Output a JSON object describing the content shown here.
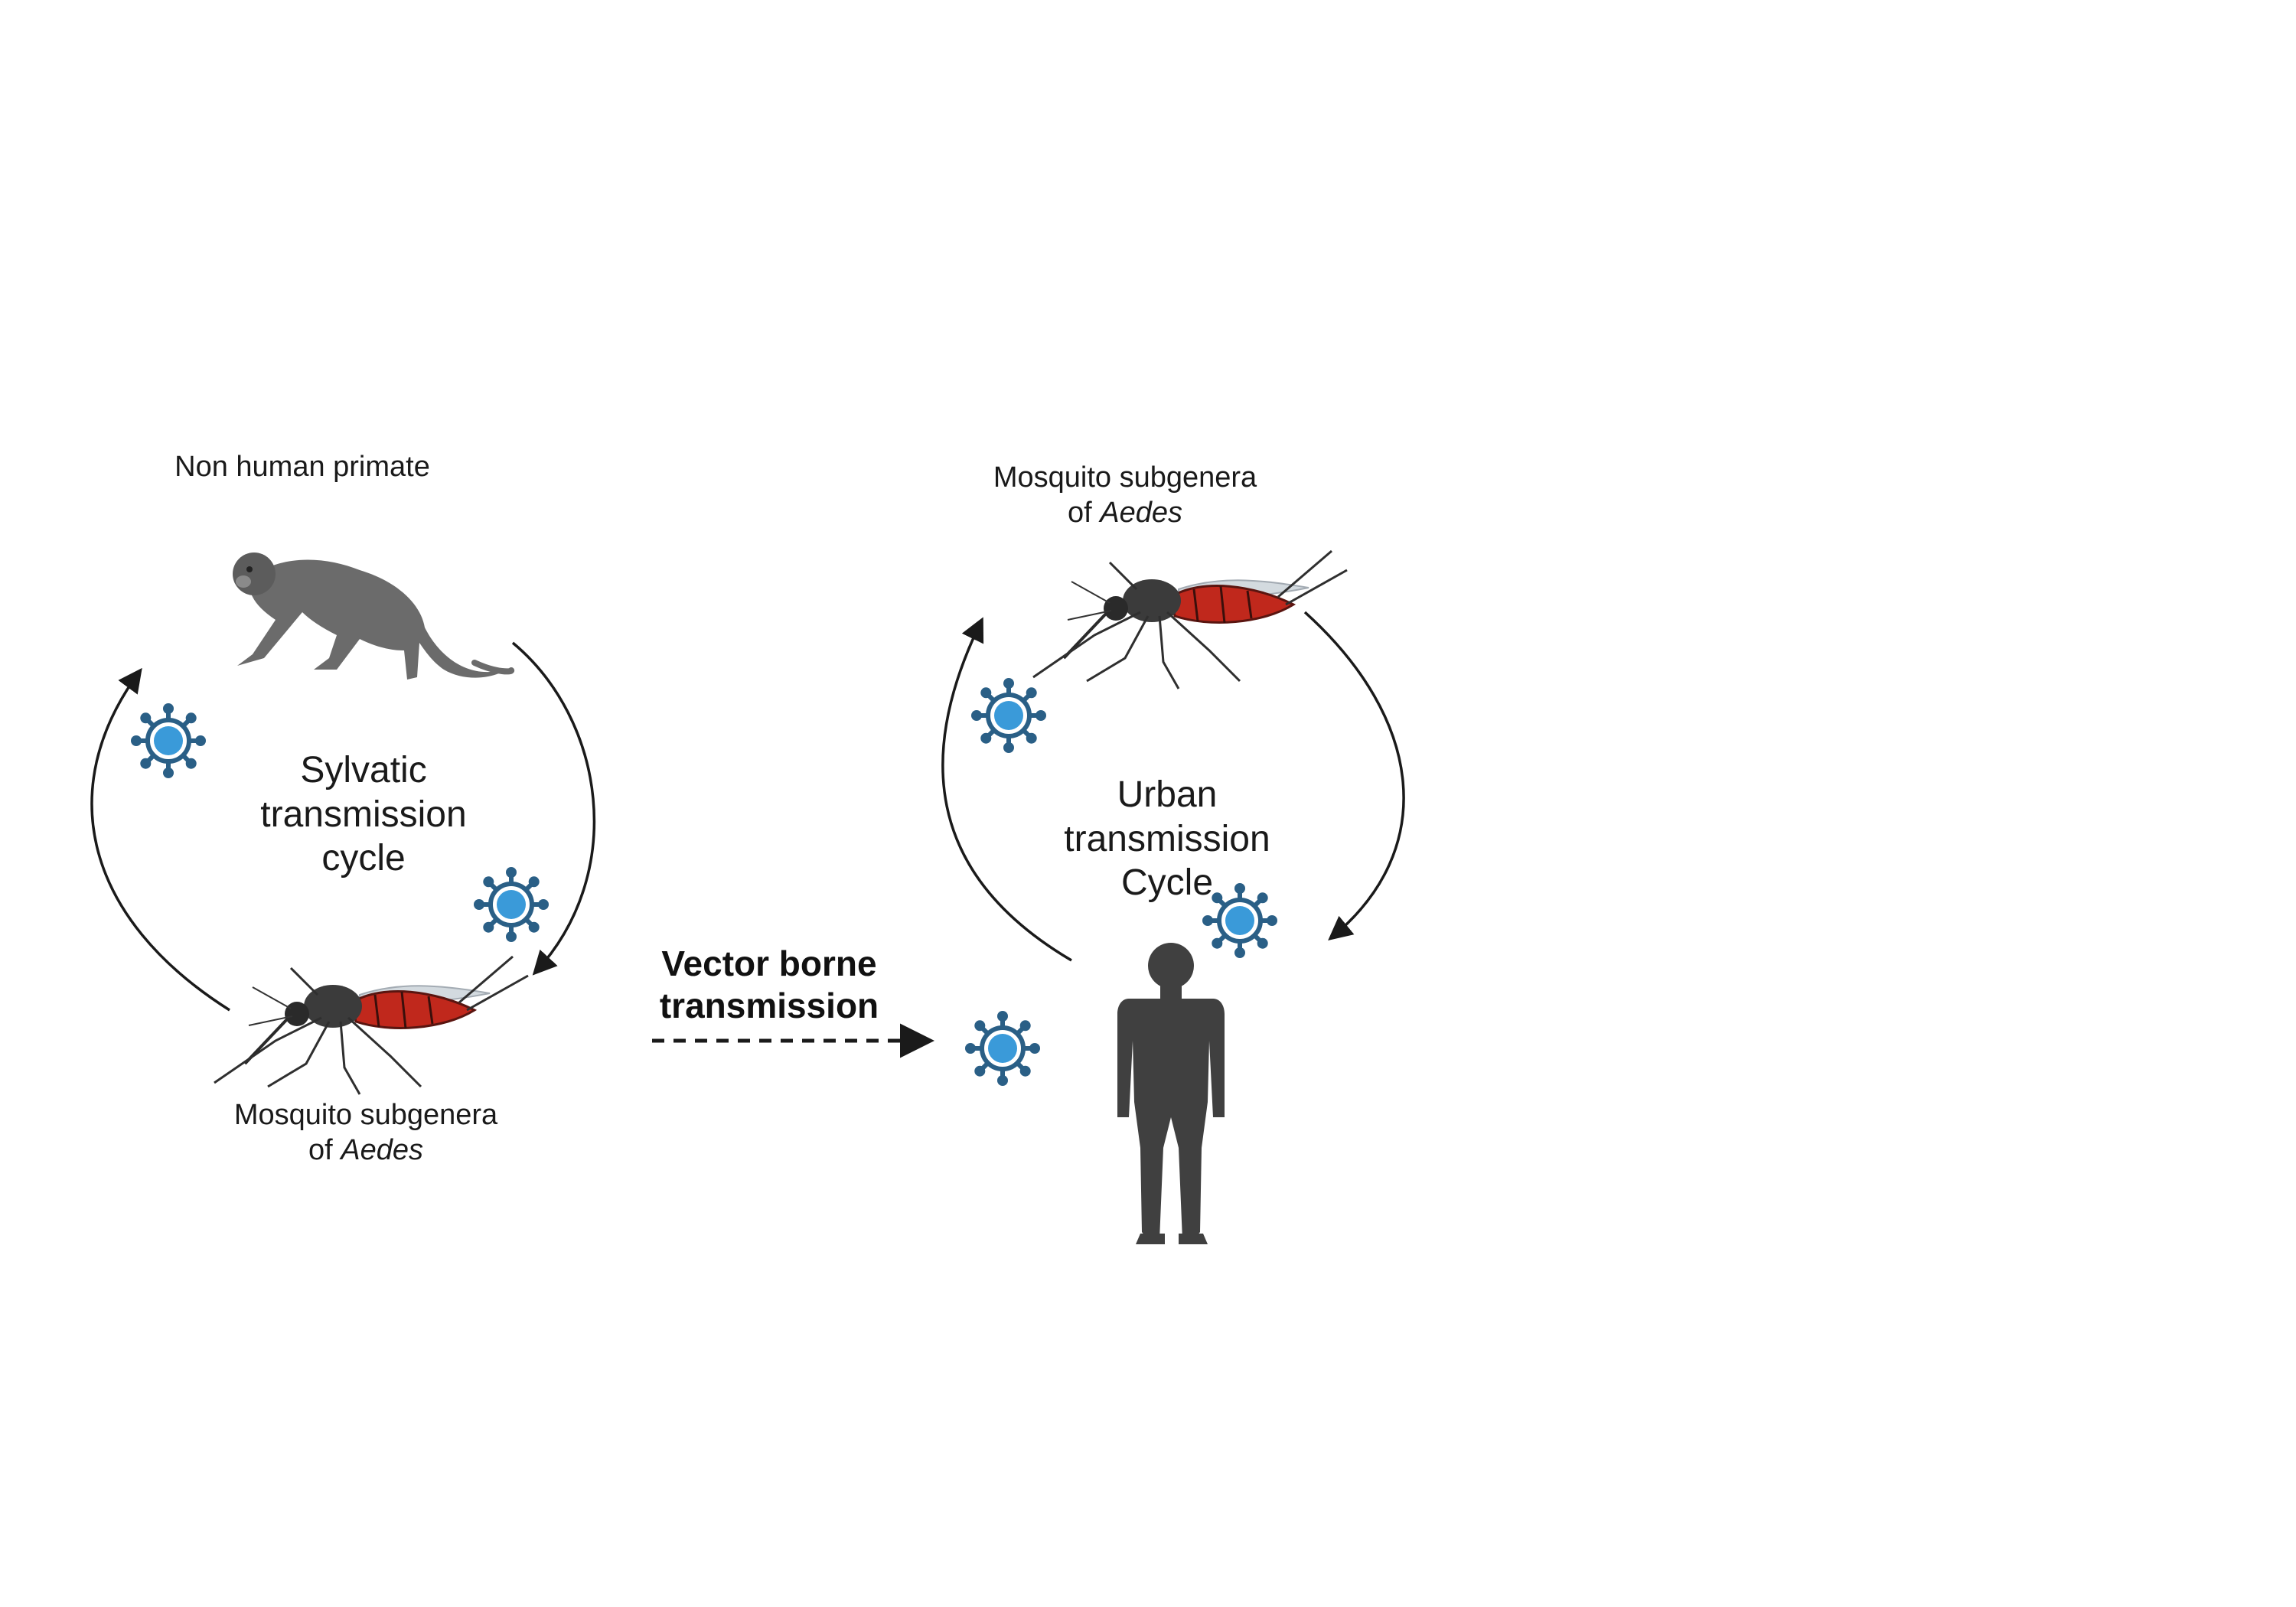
{
  "labels": {
    "primate": "Non human primate",
    "mosquito_top_line1": "Mosquito subgenera",
    "mosquito_top_of": "of",
    "mosquito_top_genus": "Aedes",
    "mosquito_bottom_line1": "Mosquito subgenera",
    "mosquito_bottom_of": "of",
    "mosquito_bottom_genus": "Aedes",
    "sylvatic_line1": "Sylvatic",
    "sylvatic_line2": "transmission",
    "sylvatic_line3": "cycle",
    "urban_line1": "Urban",
    "urban_line2": "transmission",
    "urban_line3": "Cycle",
    "vector_line1": "Vector borne",
    "vector_line2": "transmission"
  },
  "icons": {
    "monkey": "monkey-icon",
    "mosquito": "mosquito-icon",
    "virus": "virus-icon",
    "human": "human-silhouette-icon"
  },
  "colors": {
    "virus_fill": "#3a9ad9",
    "virus_stroke": "#2a5f86",
    "mosquito_abdomen": "#c0281c",
    "mosquito_body": "#3b3b3b",
    "monkey": "#6b6b6b",
    "human": "#404040",
    "arrow": "#1a1a1a"
  }
}
